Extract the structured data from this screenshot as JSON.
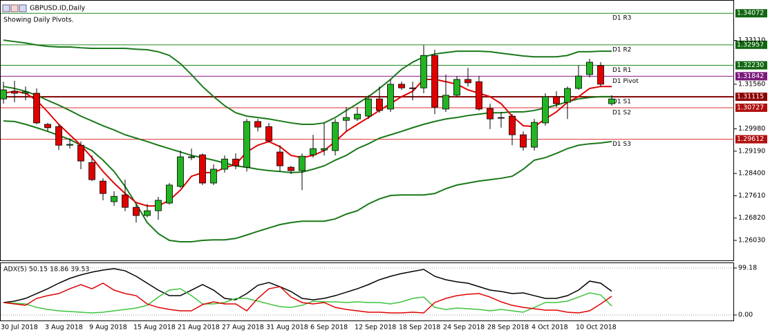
{
  "chart_data": [
    {
      "type": "candlestick",
      "title": "GBPUSD.ID,Daily",
      "subtitle": "Showing Daily Pivots.",
      "categories": [
        "30 Jul 2018",
        null,
        null,
        null,
        "3 Aug 2018",
        null,
        null,
        null,
        "9 Aug 2018",
        null,
        null,
        null,
        "15 Aug 2018",
        null,
        null,
        null,
        "21 Aug 2018",
        null,
        null,
        null,
        "27 Aug 2018",
        null,
        null,
        null,
        "31 Aug 2018",
        null,
        null,
        null,
        "6 Sep 2018",
        null,
        null,
        null,
        "12 Sep 2018",
        null,
        null,
        null,
        "18 Sep 2018",
        null,
        null,
        null,
        "24 Sep 2018",
        null,
        null,
        null,
        "28 Sep 2018",
        null,
        null,
        null,
        "4 Oct 2018",
        null,
        null,
        null,
        "10 Oct 2018",
        null,
        null,
        null
      ],
      "open": [
        1.3104,
        1.3131,
        1.3124,
        1.3124,
        1.3014,
        1.3006,
        1.294,
        1.294,
        1.2879,
        1.2813,
        1.274,
        1.2764,
        1.272,
        1.2691,
        1.2708,
        1.2735,
        1.2794,
        1.2896,
        1.2906,
        1.2806,
        1.2855,
        1.2891,
        1.2862,
        1.3024,
        1.3006,
        1.2916,
        1.2862,
        1.285,
        1.2906,
        1.2923,
        1.2921,
        1.3028,
        1.3033,
        1.3043,
        1.3104,
        1.3068,
        1.3156,
        1.3143,
        1.3143,
        1.3258,
        1.3068,
        1.3117,
        1.3173,
        1.3165,
        1.307,
        1.3038,
        1.3043,
        1.2977,
        1.2933,
        1.3019,
        1.3112,
        1.3092,
        1.3141,
        1.319,
        1.3222,
        1.3087
      ],
      "high": [
        1.3165,
        1.3168,
        1.3148,
        1.3141,
        1.3019,
        1.3014,
        1.2965,
        1.2953,
        1.2904,
        1.2823,
        1.2777,
        1.2818,
        1.2732,
        1.2732,
        1.2757,
        1.2806,
        1.2921,
        1.2928,
        1.2911,
        1.2872,
        1.2904,
        1.2911,
        1.3033,
        1.3033,
        1.3019,
        1.294,
        1.2867,
        1.2911,
        1.2977,
        1.3019,
        1.3033,
        1.3075,
        1.3075,
        1.3117,
        1.3148,
        1.3173,
        1.3165,
        1.3165,
        1.3295,
        1.3278,
        1.319,
        1.3185,
        1.3214,
        1.3185,
        1.3087,
        1.3058,
        1.305,
        1.2989,
        1.3033,
        1.3124,
        1.3131,
        1.3148,
        1.3222,
        1.3246,
        1.3234,
        1.3117
      ],
      "low": [
        1.3087,
        1.3092,
        1.3099,
        1.3014,
        1.2989,
        1.2923,
        1.2928,
        1.2855,
        1.2813,
        1.2745,
        1.2725,
        1.2706,
        1.2666,
        1.2684,
        1.2676,
        1.273,
        1.2789,
        1.2887,
        1.2799,
        1.2799,
        1.2843,
        1.2855,
        1.2847,
        1.2989,
        1.295,
        1.2847,
        1.2838,
        1.2781,
        1.2896,
        1.2904,
        1.2904,
        1.2989,
        1.3026,
        1.3033,
        1.3055,
        1.3058,
        1.3136,
        1.3099,
        1.3124,
        1.305,
        1.3058,
        1.3112,
        1.3148,
        1.3063,
        1.2997,
        1.3002,
        1.294,
        1.2921,
        1.2921,
        1.3009,
        1.3075,
        1.3033,
        1.3136,
        1.318,
        1.3148,
        1.308
      ],
      "close": [
        1.3136,
        1.3124,
        1.3129,
        1.3019,
        1.3002,
        1.294,
        1.2943,
        1.2884,
        1.2818,
        1.2769,
        1.2759,
        1.272,
        1.2691,
        1.2708,
        1.2745,
        1.2799,
        1.2899,
        1.2899,
        1.2806,
        1.2855,
        1.2891,
        1.2867,
        1.3024,
        1.3004,
        1.2955,
        1.2867,
        1.285,
        1.2901,
        1.2928,
        1.2928,
        1.3021,
        1.3038,
        1.305,
        1.3104,
        1.3063,
        1.3156,
        1.3143,
        1.3141,
        1.3258,
        1.3075,
        1.3117,
        1.3173,
        1.3161,
        1.3068,
        1.3033,
        1.3036,
        1.2977,
        1.2933,
        1.3021,
        1.3112,
        1.3087,
        1.3141,
        1.3185,
        1.3234,
        1.3156,
        1.3104
      ],
      "up_color": "#22b422",
      "down_color": "#e00000",
      "series": [
        {
          "color": "#187818",
          "values": [
            1.3312,
            1.3307,
            1.3302,
            1.3295,
            1.329,
            1.3288,
            1.3288,
            1.3285,
            1.3283,
            1.3283,
            1.3283,
            1.3283,
            1.328,
            1.3278,
            1.3271,
            1.3258,
            1.3229,
            1.319,
            1.3148,
            1.3112,
            1.308,
            1.3055,
            1.3043,
            1.3038,
            1.3033,
            1.3026,
            1.3019,
            1.3014,
            1.3014,
            1.3019,
            1.3038,
            1.3063,
            1.3087,
            1.3112,
            1.3141,
            1.3173,
            1.3209,
            1.3234,
            1.3253,
            1.3263,
            1.3268,
            1.3273,
            1.3273,
            1.3273,
            1.3271,
            1.3266,
            1.3261,
            1.3256,
            1.3253,
            1.3253,
            1.3253,
            1.3258,
            1.3271,
            1.3271,
            1.3273,
            1.3273
          ]
        },
        {
          "color": "#187818",
          "values": [
            1.3148,
            1.3141,
            1.3131,
            1.3117,
            1.3099,
            1.3082,
            1.3063,
            1.3043,
            1.3026,
            1.3009,
            1.2994,
            1.2977,
            1.2965,
            1.2953,
            1.294,
            1.2928,
            1.2916,
            1.2904,
            1.2896,
            1.2887,
            1.2877,
            1.2867,
            1.2862,
            1.2855,
            1.285,
            1.2847,
            1.2843,
            1.2845,
            1.2855,
            1.2867,
            1.2887,
            1.2904,
            1.2928,
            1.2945,
            1.2965,
            1.2977,
            1.2989,
            1.3002,
            1.3014,
            1.3024,
            1.3033,
            1.3038,
            1.3045,
            1.305,
            1.3055,
            1.3055,
            1.3058,
            1.3058,
            1.3063,
            1.3072,
            1.3082,
            1.3094,
            1.3104,
            1.3109,
            1.3112,
            1.3112
          ]
        },
        {
          "color": "#187818",
          "values": [
            1.3026,
            1.3024,
            1.3014,
            1.3002,
            1.2989,
            1.2975,
            1.296,
            1.294,
            1.2921,
            1.2887,
            1.2847,
            1.2794,
            1.2732,
            1.2666,
            1.2627,
            1.2603,
            1.2598,
            1.2598,
            1.2603,
            1.2605,
            1.2605,
            1.261,
            1.2622,
            1.2635,
            1.2647,
            1.2659,
            1.2666,
            1.2671,
            1.2671,
            1.2671,
            1.2679,
            1.2696,
            1.2708,
            1.2732,
            1.275,
            1.2762,
            1.2764,
            1.2764,
            1.2764,
            1.2769,
            1.2786,
            1.2799,
            1.2806,
            1.2813,
            1.2818,
            1.2823,
            1.283,
            1.2855,
            1.2887,
            1.2896,
            1.2911,
            1.2928,
            1.294,
            1.2945,
            1.2948,
            1.2953
          ]
        },
        {
          "color": "#e00000",
          "values": [
            1.3124,
            1.3131,
            1.3124,
            1.3099,
            1.3058,
            1.3014,
            1.2977,
            1.294,
            1.2896,
            1.2847,
            1.2806,
            1.2769,
            1.2737,
            1.2725,
            1.2725,
            1.2745,
            1.2781,
            1.283,
            1.2843,
            1.2843,
            1.286,
            1.2872,
            1.2916,
            1.294,
            1.2953,
            1.2935,
            1.2904,
            1.2896,
            1.2904,
            1.2921,
            1.2953,
            1.2989,
            1.3014,
            1.3038,
            1.3063,
            1.3087,
            1.3112,
            1.3131,
            1.3173,
            1.3173,
            1.3165,
            1.3156,
            1.3136,
            1.3124,
            1.3112,
            1.3087,
            1.3043,
            1.3009,
            1.3006,
            1.3033,
            1.3058,
            1.3092,
            1.3112,
            1.3141,
            1.3148,
            1.3148
          ]
        }
      ],
      "pivots": [
        {
          "name": "D1 R3",
          "value": 1.34072,
          "value_label": "1.34072",
          "color": "#1d8a1d",
          "box_color": "#116611"
        },
        {
          "name": "D1 R2",
          "value": 1.32957,
          "value_label": "1.32957",
          "color": "#1d8a1d",
          "box_color": "#116611"
        },
        {
          "name": "D1 R1",
          "value": 1.3223,
          "value_label": "1.32230",
          "color": "#1d8a1d",
          "box_color": "#116611"
        },
        {
          "name": "D1 Pivot",
          "value": 1.31842,
          "value_label": "1.31842",
          "color": "#8a1a8a",
          "box_color": "#7a1a7a"
        },
        {
          "name": "D1 S1",
          "value": 1.31115,
          "value_label": "1.31115",
          "color": "#800000",
          "box_color": "#8b0000"
        },
        {
          "name": "D1 S2",
          "value": 1.30727,
          "value_label": "1.30727",
          "color": "#e03030",
          "box_color": "#b01010"
        },
        {
          "name": "D1 S3",
          "value": 1.29612,
          "value_label": "1.29612",
          "color": "#e03030",
          "box_color": "#b01010"
        }
      ],
      "ylim": [
        1.2537,
        1.3442
      ],
      "yticks": [
        {
          "value": 1.2603,
          "label": "1.26030"
        },
        {
          "value": 1.2682,
          "label": "1.26820"
        },
        {
          "value": 1.2761,
          "label": "1.27610"
        },
        {
          "value": 1.284,
          "label": "1.28400"
        },
        {
          "value": 1.2919,
          "label": "1.29190"
        },
        {
          "value": 1.2998,
          "label": "1.29980"
        },
        {
          "value": 1.3156,
          "label": "1.31560"
        },
        {
          "value": 1.3311,
          "label": "1.33110"
        }
      ]
    },
    {
      "type": "line",
      "title": "ADX(5) 50.15 18.86 39.53",
      "series": [
        {
          "color": "#000000",
          "values": [
            26.3,
            29.2,
            35.0,
            45.2,
            55.4,
            67.1,
            77.3,
            84.6,
            90.4,
            94.8,
            97.7,
            93.3,
            81.7,
            67.1,
            52.5,
            40.8,
            40.8,
            52.5,
            64.2,
            52.5,
            35.0,
            32.1,
            45.2,
            62.7,
            68.5,
            59.8,
            49.6,
            35.0,
            32.1,
            35.0,
            40.8,
            48.1,
            55.4,
            64.2,
            74.4,
            81.7,
            87.5,
            91.9,
            96.3,
            81.7,
            74.4,
            70.0,
            67.1,
            59.8,
            52.5,
            49.6,
            45.2,
            46.7,
            40.8,
            35.0,
            35.0,
            40.8,
            52.5,
            71.5,
            67.1,
            50.15
          ]
        },
        {
          "color": "#3cc43c",
          "values": [
            26.3,
            24.8,
            23.3,
            16.0,
            11.7,
            8.8,
            7.3,
            5.8,
            4.4,
            5.8,
            8.8,
            11.7,
            14.6,
            20.4,
            37.9,
            52.5,
            55.4,
            40.8,
            23.3,
            23.3,
            26.3,
            35.0,
            35.0,
            29.2,
            23.3,
            17.5,
            16.0,
            20.4,
            29.2,
            27.7,
            27.7,
            26.3,
            27.7,
            26.3,
            26.3,
            23.3,
            27.7,
            35.0,
            37.9,
            16.0,
            11.7,
            14.6,
            13.1,
            11.7,
            8.8,
            11.7,
            8.8,
            5.8,
            16.0,
            26.3,
            26.3,
            29.2,
            37.9,
            46.7,
            42.3,
            18.86
          ]
        },
        {
          "color": "#e00000",
          "values": [
            26.3,
            23.3,
            20.4,
            35.0,
            40.8,
            45.2,
            55.4,
            64.2,
            55.4,
            67.1,
            52.5,
            45.2,
            40.8,
            23.3,
            16.0,
            11.7,
            8.8,
            8.8,
            21.9,
            27.7,
            23.3,
            23.3,
            8.8,
            35.0,
            55.4,
            59.8,
            37.9,
            26.3,
            23.3,
            26.3,
            16.0,
            11.7,
            8.8,
            5.8,
            5.8,
            4.4,
            4.4,
            5.8,
            4.4,
            26.3,
            35.0,
            40.8,
            43.8,
            45.2,
            37.9,
            27.7,
            20.4,
            16.0,
            13.1,
            10.2,
            10.2,
            5.8,
            4.4,
            8.8,
            23.3,
            39.53
          ]
        }
      ],
      "ylim": [
        -13.1,
        109.4
      ],
      "yticks": [
        {
          "value": 0,
          "label": "0.00"
        },
        99.18
      ],
      "grid": true
    }
  ]
}
